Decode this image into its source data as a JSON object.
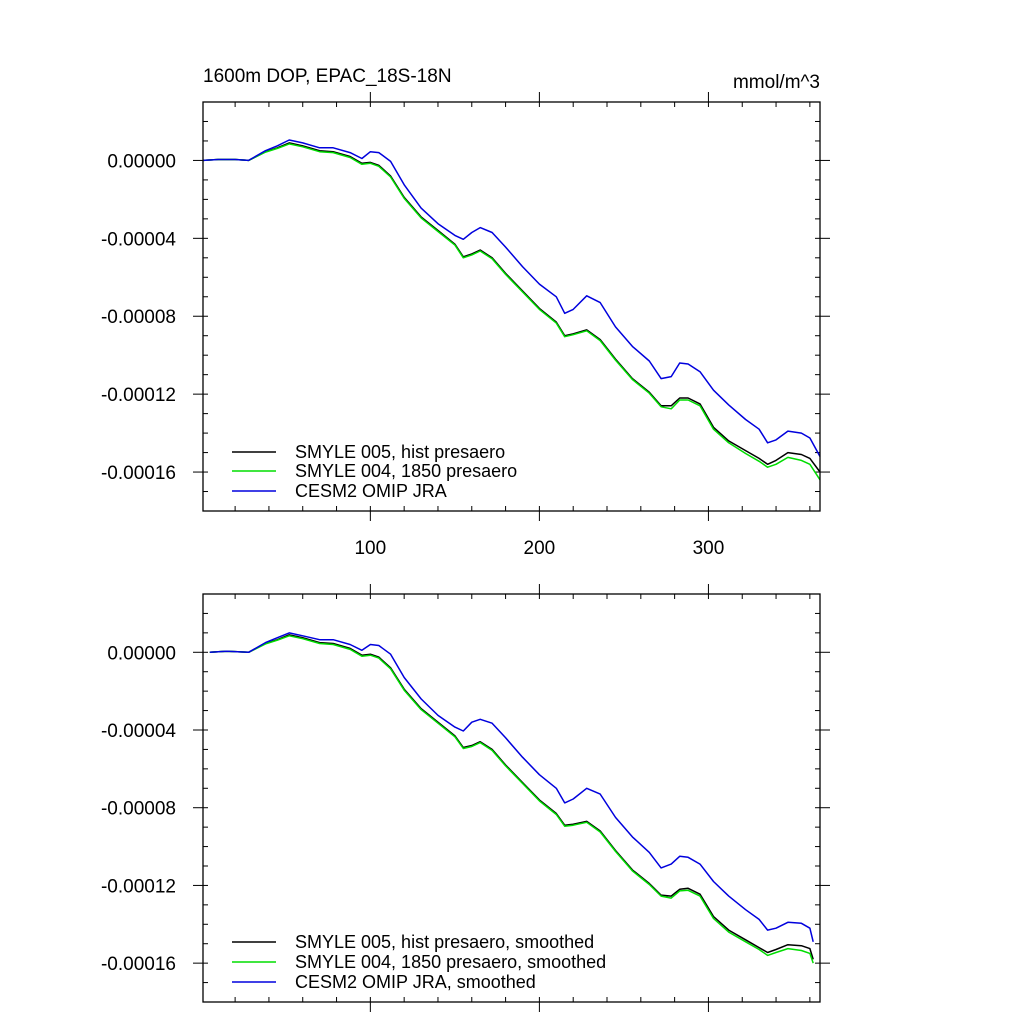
{
  "chart_data": [
    {
      "type": "line",
      "title": "1600m DOP, EPAC_18S-18N",
      "units": "mmol/m^3",
      "xlim": [
        1,
        366
      ],
      "ylim": [
        -0.00018,
        3e-05
      ],
      "x_ticks": [
        100,
        200,
        300
      ],
      "x_tick_labels": [
        "100",
        "200",
        "300"
      ],
      "y_ticks": [
        0,
        -4e-05,
        -8e-05,
        -0.00012,
        -0.00016
      ],
      "y_tick_labels": [
        "0.00000",
        "-0.00004",
        "-0.00008",
        "-0.00012",
        "-0.00016"
      ],
      "legend_position": "bottom-left",
      "x": [
        1,
        10,
        20,
        28,
        38,
        45,
        52,
        60,
        70,
        78,
        88,
        95,
        100,
        105,
        112,
        120,
        130,
        140,
        150,
        155,
        160,
        165,
        172,
        180,
        190,
        200,
        210,
        215,
        220,
        228,
        236,
        245,
        255,
        265,
        272,
        278,
        283,
        288,
        295,
        303,
        312,
        322,
        330,
        335,
        340,
        347,
        355,
        360,
        366
      ],
      "series": [
        {
          "name": "SMYLE 005, hist presaero",
          "color": "#000000",
          "values": [
            0,
            5e-07,
            5e-07,
            0,
            4.5e-06,
            6.5e-06,
            9e-06,
            7.5e-06,
            5e-06,
            4.5e-06,
            2e-06,
            -1.5e-06,
            -1e-06,
            -2.5e-06,
            -8e-06,
            -1.9e-05,
            -2.9e-05,
            -3.6e-05,
            -4.3e-05,
            -4.95e-05,
            -4.8e-05,
            -4.6e-05,
            -5e-05,
            -5.8e-05,
            -6.7e-05,
            -7.6e-05,
            -8.3e-05,
            -9e-05,
            -8.9e-05,
            -8.7e-05,
            -9.2e-05,
            -0.000102,
            -0.000112,
            -0.000119,
            -0.000126,
            -0.000126,
            -0.000122,
            -0.000122,
            -0.000125,
            -0.000137,
            -0.000144,
            -0.000149,
            -0.000153,
            -0.000156,
            -0.000154,
            -0.00015,
            -0.000151,
            -0.000153,
            -0.00016
          ]
        },
        {
          "name": "SMYLE 004, 1850 presaero",
          "color": "#00dd00",
          "values": [
            0,
            5e-07,
            5e-07,
            0,
            4.3e-06,
            6.2e-06,
            8.5e-06,
            7e-06,
            4.5e-06,
            4e-06,
            1.5e-06,
            -2e-06,
            -1.5e-06,
            -3e-06,
            -8.5e-06,
            -1.95e-05,
            -2.95e-05,
            -3.65e-05,
            -4.35e-05,
            -5e-05,
            -4.85e-05,
            -4.65e-05,
            -5.05e-05,
            -5.85e-05,
            -6.75e-05,
            -7.65e-05,
            -8.35e-05,
            -9.05e-05,
            -8.95e-05,
            -8.75e-05,
            -9.25e-05,
            -0.0001025,
            -0.0001125,
            -0.0001195,
            -0.0001265,
            -0.0001275,
            -0.000123,
            -0.000123,
            -0.000126,
            -0.000138,
            -0.000145,
            -0.0001505,
            -0.0001545,
            -0.0001575,
            -0.000156,
            -0.0001525,
            -0.000154,
            -0.000156,
            -0.000164
          ]
        },
        {
          "name": "CESM2 OMIP JRA",
          "color": "#0000dd",
          "values": [
            0,
            5e-07,
            5e-07,
            0,
            5e-06,
            7.5e-06,
            1.05e-05,
            9e-06,
            6.5e-06,
            6.5e-06,
            4e-06,
            1e-06,
            4.5e-06,
            4e-06,
            -5e-07,
            -1.25e-05,
            -2.45e-05,
            -3.25e-05,
            -3.85e-05,
            -4.05e-05,
            -3.7e-05,
            -3.45e-05,
            -3.7e-05,
            -4.45e-05,
            -5.45e-05,
            -6.35e-05,
            -7e-05,
            -7.85e-05,
            -7.65e-05,
            -6.95e-05,
            -7.3e-05,
            -8.55e-05,
            -9.55e-05,
            -0.000103,
            -0.000112,
            -0.000111,
            -0.000104,
            -0.0001045,
            -0.0001085,
            -0.000118,
            -0.0001255,
            -0.000133,
            -0.000138,
            -0.000145,
            -0.0001435,
            -0.000139,
            -0.00014,
            -0.0001425,
            -0.000152
          ]
        }
      ]
    },
    {
      "type": "line",
      "title": "",
      "xlim": [
        1,
        366
      ],
      "ylim": [
        -0.00018,
        3e-05
      ],
      "x_ticks": [
        100,
        200,
        300
      ],
      "x_tick_labels": [
        "",
        "",
        ""
      ],
      "y_ticks": [
        0,
        -4e-05,
        -8e-05,
        -0.00012,
        -0.00016
      ],
      "y_tick_labels": [
        "0.00000",
        "-0.00004",
        "-0.00008",
        "-0.00012",
        "-0.00016"
      ],
      "legend_position": "bottom-left",
      "x": [
        5,
        15,
        28,
        38,
        45,
        52,
        60,
        70,
        78,
        88,
        95,
        100,
        105,
        112,
        120,
        130,
        140,
        150,
        155,
        160,
        165,
        172,
        180,
        190,
        200,
        210,
        215,
        220,
        228,
        236,
        245,
        255,
        265,
        272,
        278,
        283,
        288,
        295,
        303,
        312,
        322,
        330,
        335,
        340,
        347,
        355,
        360,
        362
      ],
      "series": [
        {
          "name": "SMYLE 005, hist presaero, smoothed",
          "color": "#000000",
          "values": [
            0,
            5e-07,
            0,
            4.5e-06,
            6.5e-06,
            9e-06,
            7.5e-06,
            5e-06,
            4.5e-06,
            2e-06,
            -1.5e-06,
            -1e-06,
            -2.5e-06,
            -8e-06,
            -1.9e-05,
            -2.9e-05,
            -3.6e-05,
            -4.3e-05,
            -4.9e-05,
            -4.8e-05,
            -4.6e-05,
            -5e-05,
            -5.8e-05,
            -6.7e-05,
            -7.6e-05,
            -8.3e-05,
            -8.9e-05,
            -8.85e-05,
            -8.7e-05,
            -9.2e-05,
            -0.000102,
            -0.000112,
            -0.000119,
            -0.000125,
            -0.0001255,
            -0.000122,
            -0.0001215,
            -0.0001245,
            -0.000136,
            -0.000143,
            -0.000148,
            -0.000152,
            -0.0001545,
            -0.000153,
            -0.0001505,
            -0.000151,
            -0.0001525,
            -0.000158
          ]
        },
        {
          "name": "SMYLE 004, 1850 presaero, smoothed",
          "color": "#00dd00",
          "values": [
            0,
            5e-07,
            0,
            4.3e-06,
            6.2e-06,
            8.5e-06,
            7e-06,
            4.5e-06,
            4e-06,
            1.5e-06,
            -2e-06,
            -1.5e-06,
            -3e-06,
            -8.5e-06,
            -1.95e-05,
            -2.95e-05,
            -3.65e-05,
            -4.35e-05,
            -4.95e-05,
            -4.85e-05,
            -4.65e-05,
            -5.05e-05,
            -5.85e-05,
            -6.75e-05,
            -7.65e-05,
            -8.35e-05,
            -8.95e-05,
            -8.9e-05,
            -8.75e-05,
            -9.25e-05,
            -0.0001025,
            -0.0001125,
            -0.0001195,
            -0.0001255,
            -0.0001265,
            -0.0001228,
            -0.0001225,
            -0.0001255,
            -0.000137,
            -0.000144,
            -0.000149,
            -0.000153,
            -0.000156,
            -0.0001545,
            -0.0001525,
            -0.0001535,
            -0.000155,
            -0.00016
          ]
        },
        {
          "name": "CESM2 OMIP JRA, smoothed",
          "color": "#0000dd",
          "values": [
            0,
            5e-07,
            0,
            5e-06,
            7.5e-06,
            1e-05,
            8.5e-06,
            6.5e-06,
            6.5e-06,
            4e-06,
            1e-06,
            4e-06,
            3.5e-06,
            -1e-06,
            -1.3e-05,
            -2.4e-05,
            -3.25e-05,
            -3.85e-05,
            -4.05e-05,
            -3.6e-05,
            -3.45e-05,
            -3.65e-05,
            -4.4e-05,
            -5.4e-05,
            -6.3e-05,
            -7e-05,
            -7.75e-05,
            -7.55e-05,
            -7e-05,
            -7.3e-05,
            -8.5e-05,
            -9.5e-05,
            -0.000103,
            -0.000111,
            -0.000109,
            -0.000105,
            -0.0001055,
            -0.000109,
            -0.000118,
            -0.0001255,
            -0.0001325,
            -0.0001375,
            -0.000143,
            -0.000142,
            -0.000139,
            -0.0001395,
            -0.000142,
            -0.000149
          ]
        }
      ]
    }
  ]
}
